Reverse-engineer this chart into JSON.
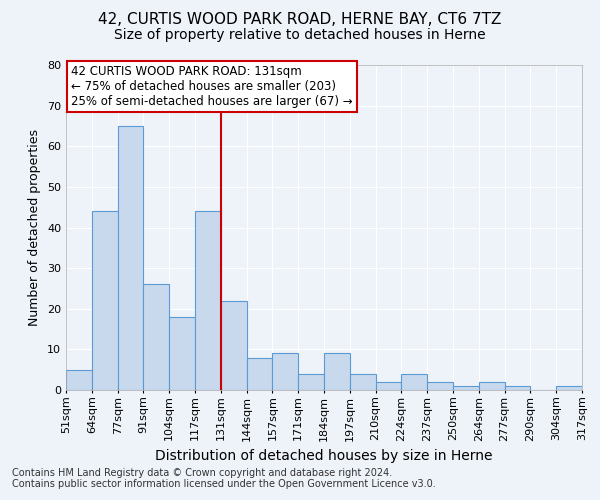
{
  "title1": "42, CURTIS WOOD PARK ROAD, HERNE BAY, CT6 7TZ",
  "title2": "Size of property relative to detached houses in Herne",
  "xlabel": "Distribution of detached houses by size in Herne",
  "ylabel": "Number of detached properties",
  "bar_values": [
    5,
    44,
    65,
    26,
    18,
    44,
    22,
    8,
    9,
    4,
    9,
    4,
    2,
    4,
    2,
    1,
    2,
    1,
    0,
    1
  ],
  "bar_labels": [
    "51sqm",
    "64sqm",
    "77sqm",
    "91sqm",
    "104sqm",
    "117sqm",
    "131sqm",
    "144sqm",
    "157sqm",
    "171sqm",
    "184sqm",
    "197sqm",
    "210sqm",
    "224sqm",
    "237sqm",
    "250sqm",
    "264sqm",
    "277sqm",
    "290sqm",
    "304sqm",
    "317sqm"
  ],
  "bar_color": "#c8d9ed",
  "bar_edge_color": "#5b9bd5",
  "highlight_line_color": "#cc0000",
  "highlight_line_index": 6,
  "ylim": [
    0,
    80
  ],
  "yticks": [
    0,
    10,
    20,
    30,
    40,
    50,
    60,
    70,
    80
  ],
  "annotation_line1": "42 CURTIS WOOD PARK ROAD: 131sqm",
  "annotation_line2": "← 75% of detached houses are smaller (203)",
  "annotation_line3": "25% of semi-detached houses are larger (67) →",
  "annotation_box_color": "#ffffff",
  "annotation_box_edge": "#cc0000",
  "footer1": "Contains HM Land Registry data © Crown copyright and database right 2024.",
  "footer2": "Contains public sector information licensed under the Open Government Licence v3.0.",
  "bg_color": "#eef2f9",
  "grid_color": "#ffffff",
  "title1_fontsize": 11,
  "title2_fontsize": 10,
  "xlabel_fontsize": 10,
  "ylabel_fontsize": 9,
  "tick_fontsize": 8,
  "annot_fontsize": 8.5,
  "footer_fontsize": 7
}
